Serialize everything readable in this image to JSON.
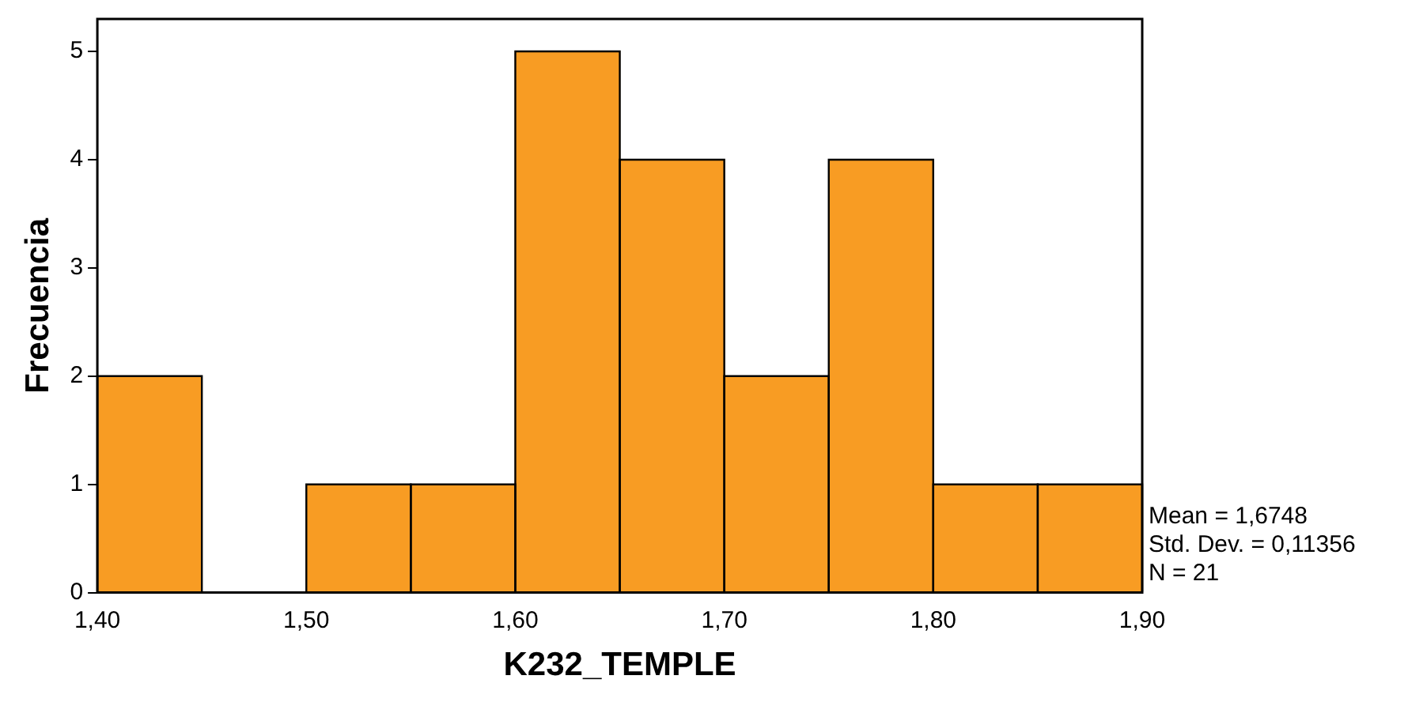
{
  "chart_data": {
    "type": "histogram",
    "xlabel": "K232_TEMPLE",
    "ylabel": "Frecuencia",
    "bins": [
      1.4,
      1.45,
      1.5,
      1.55,
      1.6,
      1.65,
      1.7,
      1.75,
      1.8,
      1.85,
      1.9
    ],
    "values": [
      2,
      0,
      1,
      1,
      5,
      4,
      2,
      4,
      1,
      1
    ],
    "color": "#f89c23",
    "xlim": [
      1.4,
      1.9
    ],
    "xticks": [
      {
        "value": 1.4,
        "label": "1,40"
      },
      {
        "value": 1.5,
        "label": "1,50"
      },
      {
        "value": 1.6,
        "label": "1,60"
      },
      {
        "value": 1.7,
        "label": "1,70"
      },
      {
        "value": 1.8,
        "label": "1,80"
      },
      {
        "value": 1.9,
        "label": "1,90"
      }
    ],
    "ylim": [
      0,
      5.3
    ],
    "yticks": [
      0,
      1,
      2,
      3,
      4,
      5
    ],
    "grid": false,
    "legend": false,
    "annotations": [
      "Mean = 1,6748",
      "Std. Dev. = 0,11356",
      "N = 21"
    ]
  }
}
